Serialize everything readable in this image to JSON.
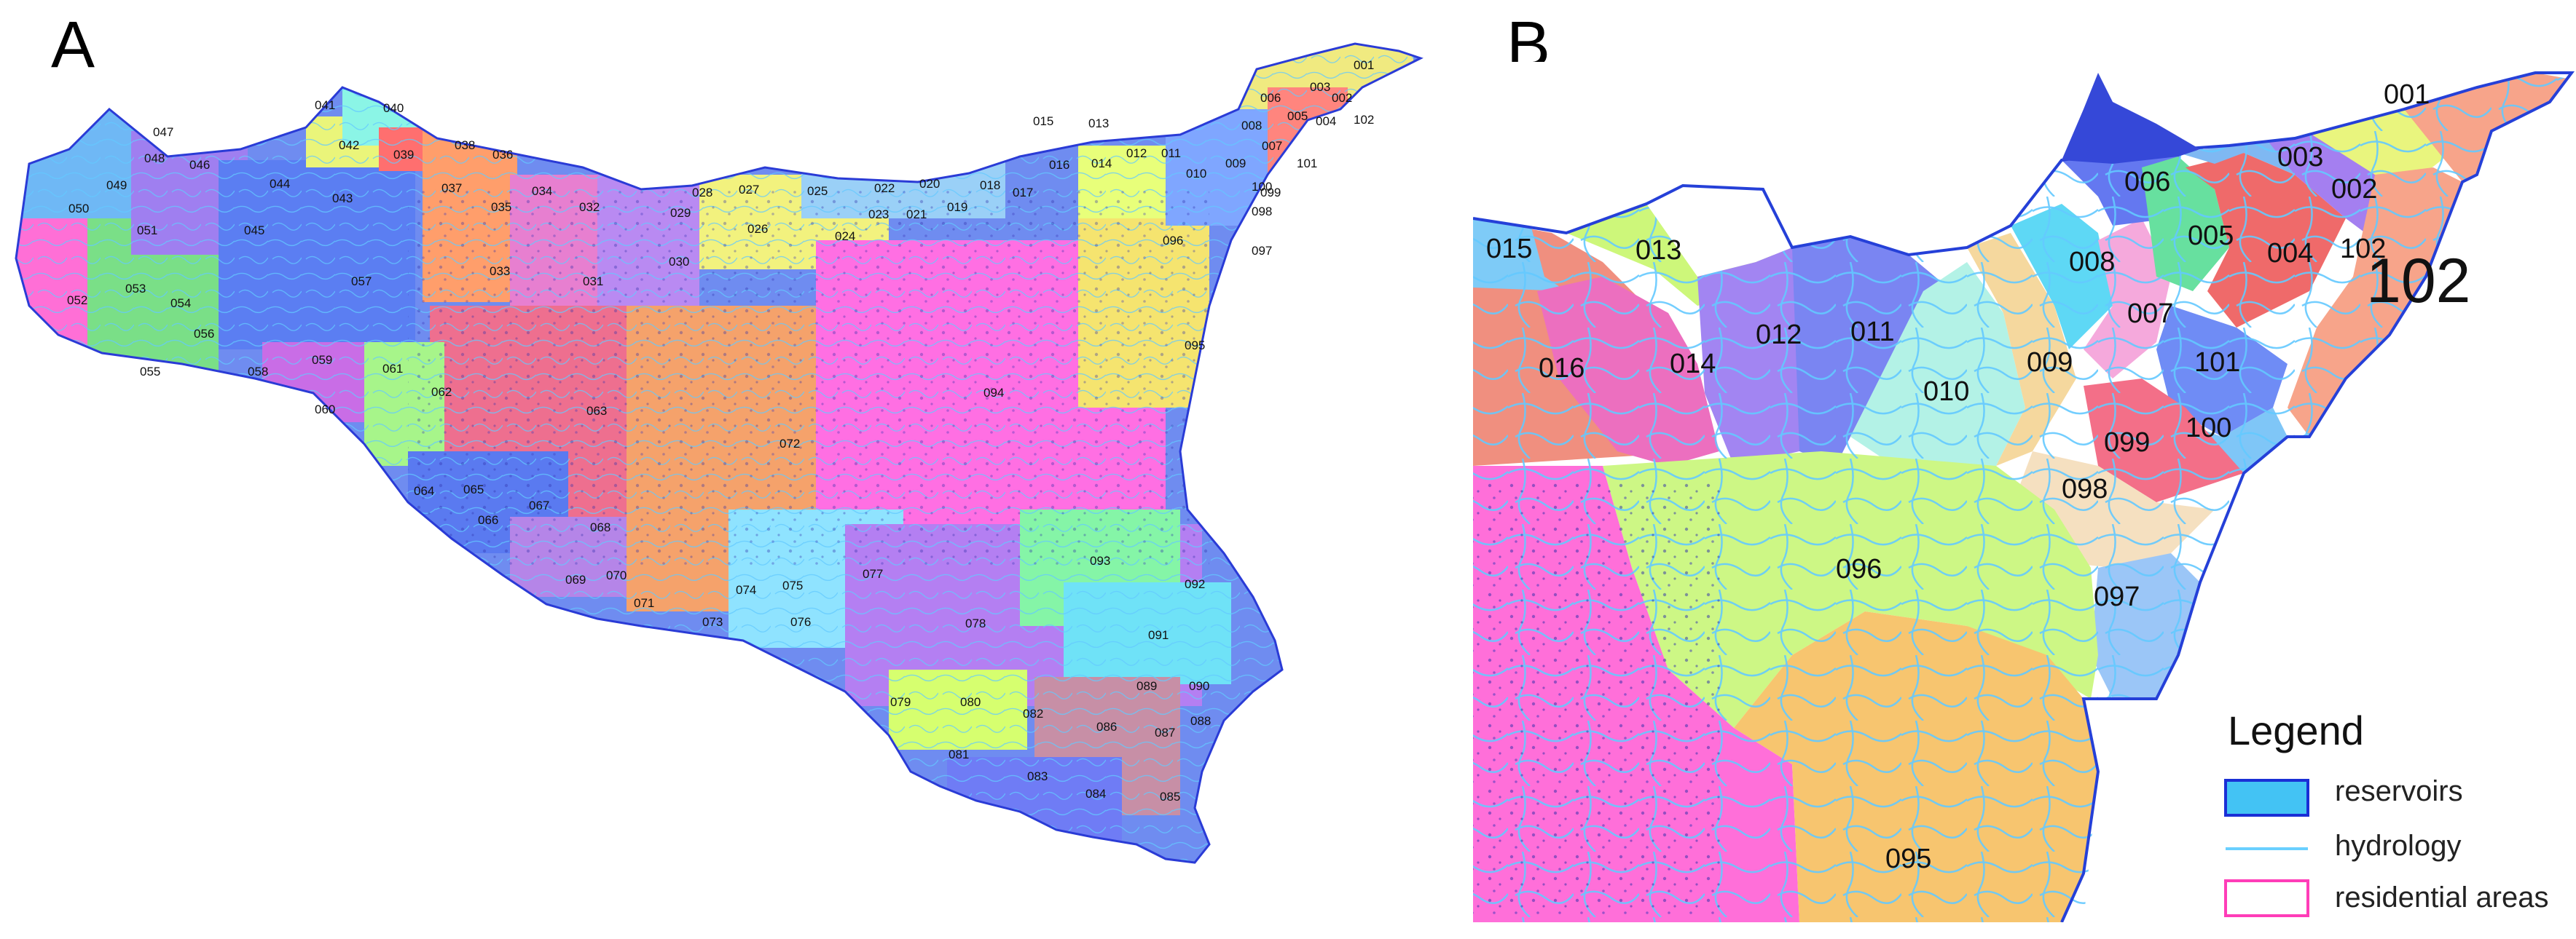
{
  "panels": {
    "a": {
      "letter": "A",
      "labels": [
        "001",
        "002",
        "003",
        "004",
        "005",
        "006",
        "007",
        "008",
        "009",
        "010",
        "011",
        "012",
        "013",
        "014",
        "015",
        "016",
        "017",
        "018",
        "019",
        "020",
        "021",
        "022",
        "023",
        "024",
        "025",
        "026",
        "027",
        "028",
        "029",
        "030",
        "031",
        "032",
        "033",
        "034",
        "035",
        "036",
        "037",
        "038",
        "039",
        "040",
        "041",
        "042",
        "043",
        "044",
        "045",
        "046",
        "047",
        "048",
        "049",
        "050",
        "051",
        "052",
        "053",
        "054",
        "055",
        "056",
        "057",
        "058",
        "059",
        "060",
        "061",
        "062",
        "063",
        "064",
        "065",
        "066",
        "067",
        "068",
        "069",
        "070",
        "071",
        "072",
        "073",
        "074",
        "075",
        "076",
        "077",
        "078",
        "079",
        "080",
        "081",
        "082",
        "083",
        "084",
        "085",
        "086",
        "087",
        "088",
        "089",
        "090",
        "091",
        "092",
        "093",
        "094",
        "095",
        "096",
        "097",
        "098",
        "099",
        "100",
        "101",
        "102"
      ]
    },
    "b": {
      "letter": "B",
      "labels": [
        "001",
        "002",
        "003",
        "004",
        "005",
        "006",
        "007",
        "008",
        "009",
        "010",
        "011",
        "012",
        "013",
        "014",
        "015",
        "016",
        "095",
        "096",
        "097",
        "098",
        "099",
        "100",
        "101",
        "102"
      ],
      "callout": "102"
    }
  },
  "legend": {
    "title": "Legend",
    "items": [
      {
        "label": "reservoirs",
        "swatch": "fill",
        "fill": "#43c3f4",
        "stroke": "#1a2fd6"
      },
      {
        "label": "hydrology",
        "swatch": "line",
        "stroke": "#6ad0ff"
      },
      {
        "label": "residential areas",
        "swatch": "outline",
        "stroke": "#ff3db8"
      }
    ]
  }
}
